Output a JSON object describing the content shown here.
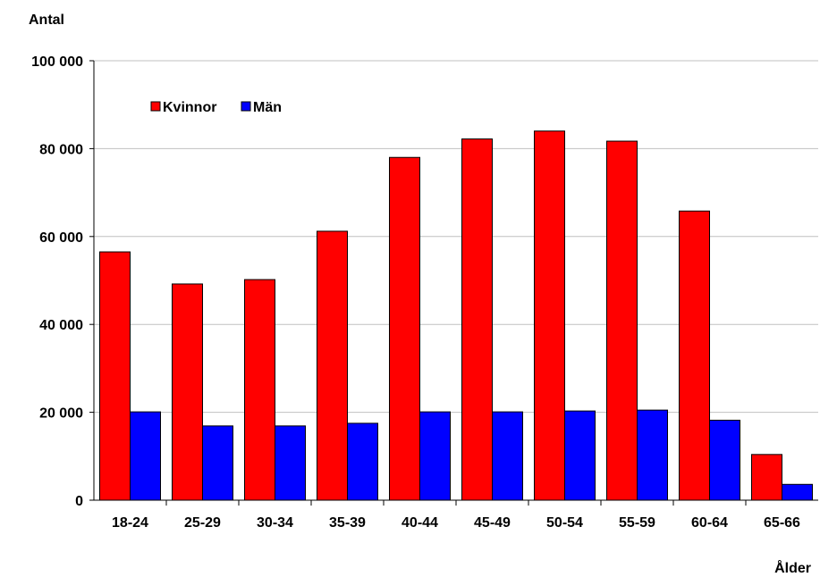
{
  "chart_data": {
    "type": "bar",
    "categories": [
      "18-24",
      "25-29",
      "30-34",
      "35-39",
      "40-44",
      "45-49",
      "50-54",
      "55-59",
      "60-64",
      "65-66"
    ],
    "series": [
      {
        "name": "Kvinnor",
        "color": "#ff0000",
        "values": [
          56500,
          49200,
          50200,
          61200,
          78000,
          82200,
          84000,
          81700,
          65800,
          10400
        ]
      },
      {
        "name": "Män",
        "color": "#0000ff",
        "values": [
          20100,
          16900,
          16900,
          17500,
          20100,
          20100,
          20300,
          20500,
          18200,
          3600
        ]
      }
    ],
    "xlabel": "Ålder",
    "ylabel": "Antal",
    "ylim": [
      0,
      100000
    ],
    "yticks": [
      0,
      20000,
      40000,
      60000,
      80000,
      100000
    ],
    "ytick_labels": [
      "0",
      "20 000",
      "40 000",
      "60 000",
      "80 000",
      "100 000"
    ],
    "grid": true,
    "legend_position": "top-left"
  }
}
